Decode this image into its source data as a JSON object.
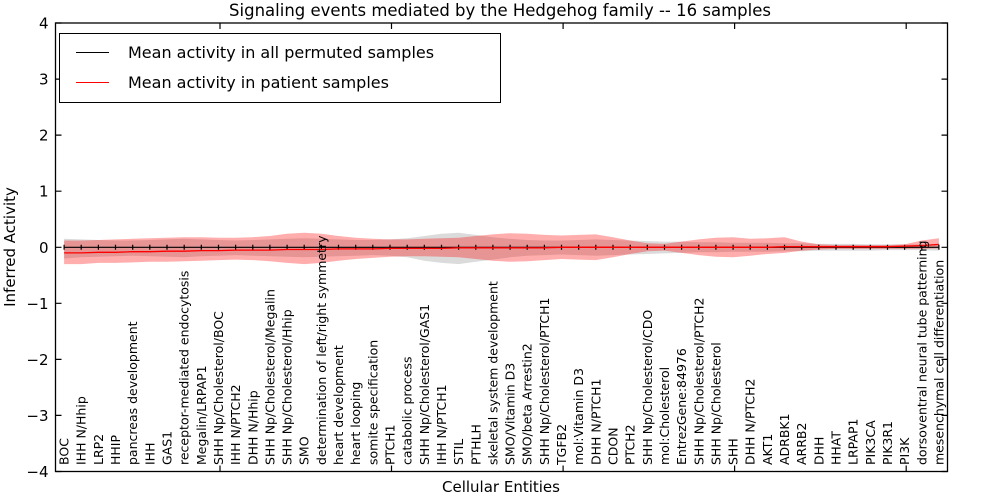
{
  "figure": {
    "title": "Signaling events mediated by the Hedgehog family -- 16 samples",
    "xlabel": "Cellular Entities",
    "ylabel": "Inferred Activity",
    "num_samples_shown_in_title": 16
  },
  "legend": {
    "items": [
      {
        "label": "Mean activity in all permuted samples",
        "color": "#000000"
      },
      {
        "label": "Mean activity in patient samples",
        "color": "#ff0000"
      }
    ],
    "position": "upper left"
  },
  "colors": {
    "background": "#ffffff",
    "axes_frame": "#000000",
    "permuted_line": "#000000",
    "patient_line": "#ff0000",
    "permuted_band_fill": "#000000",
    "patient_band_fill": "#ff0000"
  },
  "chart_data": {
    "type": "line",
    "title": "Signaling events mediated by the Hedgehog family -- 16 samples",
    "xlabel": "Cellular Entities",
    "ylabel": "Inferred Activity",
    "ylim": [
      -4,
      4
    ],
    "yticks": [
      4,
      3,
      2,
      1,
      0,
      -1,
      -2,
      -3,
      -4
    ],
    "xticks": [
      10,
      20,
      30,
      40,
      50
    ],
    "grid": false,
    "legend_position": "upper left",
    "categories": [
      "BOC",
      "IHH N/Hhip",
      "LRP2",
      "HHIP",
      "pancreas development",
      "IHH",
      "GAS1",
      "receptor-mediated endocytosis",
      "Megalin/LRPAP1",
      "SHH Np/Cholesterol/BOC",
      "IHH N/PTCH2",
      "DHH N/Hhip",
      "SHH Np/Cholesterol/Megalin",
      "SHH Np/Cholesterol/Hhip",
      "SMO",
      "determination of left/right symmetry",
      "heart development",
      "heart looping",
      "somite specification",
      "PTCH1",
      "catabolic process",
      "SHH Np/Cholesterol/GAS1",
      "IHH N/PTCH1",
      "STIL",
      "PTHLH",
      "skeletal system development",
      "SMO/Vitamin D3",
      "SMO/beta Arrestin2",
      "SHH Np/Cholesterol/PTCH1",
      "TGFB2",
      "mol:Vitamin D3",
      "DHH N/PTCH1",
      "CDON",
      "PTCH2",
      "SHH Np/Cholesterol/CDO",
      "mol:Cholesterol",
      "EntrezGene:84976",
      "SHH Np/Cholesterol/PTCH2",
      "SHH Np/Cholesterol",
      "SHH",
      "DHH N/PTCH2",
      "AKT1",
      "ADRBK1",
      "ARRB2",
      "DHH",
      "HHAT",
      "LRPAP1",
      "PIK3CA",
      "PIK3R1",
      "PI3K",
      "dorsoventral neural tube patterning",
      "mesenchymal cell differentiation"
    ],
    "series": [
      {
        "name": "Mean activity in all permuted samples",
        "color": "#000000",
        "marker": "vertical-dash",
        "values": [
          0,
          0,
          0,
          0,
          0,
          0,
          0,
          0,
          0,
          0,
          0,
          0,
          0,
          0,
          0,
          0,
          0,
          0,
          0,
          0,
          0,
          0,
          0,
          0,
          0,
          0,
          0,
          0,
          0,
          0,
          0,
          0,
          0,
          0,
          0,
          0,
          0,
          0,
          0,
          0,
          0,
          0,
          0,
          0,
          0,
          0,
          0,
          0,
          0,
          0,
          0,
          0
        ]
      },
      {
        "name": "Mean activity in patient samples",
        "color": "#ff0000",
        "marker": "none",
        "values": [
          -0.1,
          -0.1,
          -0.09,
          -0.09,
          -0.08,
          -0.08,
          -0.07,
          -0.07,
          -0.06,
          -0.06,
          -0.05,
          -0.05,
          -0.05,
          -0.04,
          -0.04,
          -0.04,
          -0.03,
          -0.03,
          -0.03,
          -0.02,
          -0.02,
          -0.02,
          -0.02,
          -0.01,
          -0.01,
          -0.01,
          -0.01,
          -0.01,
          -0.01,
          0,
          0,
          0,
          0,
          0,
          0,
          0,
          0,
          0,
          0,
          0,
          0,
          0,
          0.01,
          0.01,
          0.01,
          0.01,
          0.01,
          0.01,
          0.01,
          0.02,
          0.03,
          0.05
        ]
      }
    ],
    "bands": [
      {
        "name": "permuted-samples-std-band",
        "color": "#000000",
        "opacity": 0.14,
        "upper": [
          0.15,
          0.14,
          0.13,
          0.12,
          0.12,
          0.13,
          0.14,
          0.15,
          0.14,
          0.13,
          0.12,
          0.13,
          0.14,
          0.15,
          0.16,
          0.15,
          0.14,
          0.13,
          0.13,
          0.14,
          0.16,
          0.2,
          0.24,
          0.26,
          0.22,
          0.18,
          0.15,
          0.13,
          0.12,
          0.12,
          0.13,
          0.14,
          0.13,
          0.12,
          0.11,
          0.1,
          0.1,
          0.09,
          0.09,
          0.08,
          0.08,
          0.08,
          0.07,
          0.07,
          0.06,
          0.06,
          0.06,
          0.05,
          0.05,
          0.05,
          0.05,
          0.05
        ],
        "lower": [
          -0.2,
          -0.18,
          -0.17,
          -0.16,
          -0.15,
          -0.16,
          -0.17,
          -0.18,
          -0.16,
          -0.15,
          -0.14,
          -0.15,
          -0.16,
          -0.17,
          -0.18,
          -0.17,
          -0.16,
          -0.15,
          -0.14,
          -0.15,
          -0.18,
          -0.24,
          -0.28,
          -0.3,
          -0.26,
          -0.22,
          -0.18,
          -0.15,
          -0.14,
          -0.13,
          -0.14,
          -0.15,
          -0.14,
          -0.13,
          -0.12,
          -0.11,
          -0.1,
          -0.09,
          -0.09,
          -0.08,
          -0.08,
          -0.08,
          -0.07,
          -0.07,
          -0.06,
          -0.06,
          -0.06,
          -0.06,
          -0.05,
          -0.05,
          -0.05,
          -0.06
        ]
      },
      {
        "name": "patient-samples-std-band",
        "color": "#ff0000",
        "opacity": 0.32,
        "upper": [
          0.12,
          0.12,
          0.13,
          0.14,
          0.15,
          0.16,
          0.17,
          0.18,
          0.18,
          0.17,
          0.17,
          0.18,
          0.2,
          0.24,
          0.26,
          0.24,
          0.2,
          0.17,
          0.15,
          0.14,
          0.14,
          0.15,
          0.16,
          0.17,
          0.2,
          0.23,
          0.25,
          0.24,
          0.22,
          0.21,
          0.22,
          0.23,
          0.18,
          0.12,
          0.07,
          0.06,
          0.1,
          0.14,
          0.17,
          0.18,
          0.15,
          0.16,
          0.18,
          0.1,
          0.05,
          0.04,
          0.04,
          0.04,
          0.04,
          0.05,
          0.12,
          0.16
        ],
        "lower": [
          -0.3,
          -0.3,
          -0.28,
          -0.28,
          -0.27,
          -0.26,
          -0.26,
          -0.25,
          -0.24,
          -0.23,
          -0.22,
          -0.23,
          -0.25,
          -0.28,
          -0.3,
          -0.28,
          -0.24,
          -0.21,
          -0.19,
          -0.17,
          -0.16,
          -0.16,
          -0.17,
          -0.18,
          -0.21,
          -0.24,
          -0.26,
          -0.25,
          -0.23,
          -0.21,
          -0.22,
          -0.23,
          -0.18,
          -0.12,
          -0.07,
          -0.06,
          -0.1,
          -0.14,
          -0.17,
          -0.18,
          -0.15,
          -0.12,
          -0.1,
          -0.06,
          -0.04,
          -0.03,
          -0.03,
          -0.03,
          -0.03,
          -0.03,
          -0.03,
          -0.02
        ]
      }
    ]
  }
}
